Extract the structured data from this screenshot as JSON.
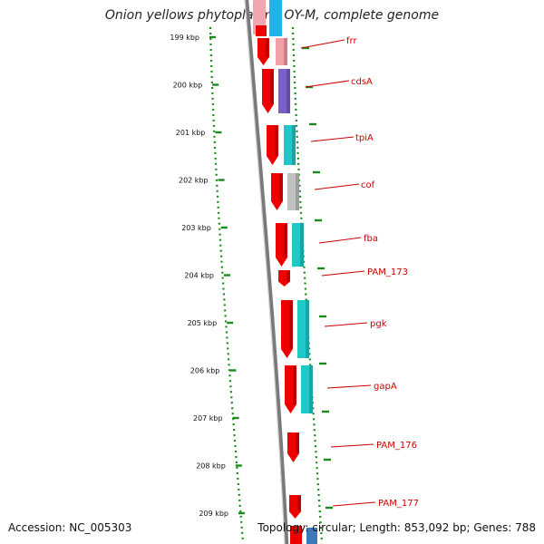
{
  "title": "Onion yellows phytoplasma OY-M, complete genome",
  "footer": {
    "accession": "Accession: NC_005303",
    "stats": "Topology: circular; Length: 853,092 bp; Genes: 788"
  },
  "ruler": {
    "ticks": [
      "199 kbp",
      "200 kbp",
      "201 kbp",
      "202 kbp",
      "203 kbp",
      "204 kbp",
      "205 kbp",
      "206 kbp",
      "207 kbp",
      "208 kbp",
      "209 kbp"
    ]
  },
  "genes": [
    {
      "name": "frr",
      "label_color": "#cc0000",
      "cog_color": "#f0a0a8"
    },
    {
      "name": "cdsA",
      "label_color": "#cc0000",
      "cog_color": "#7a60c8"
    },
    {
      "name": "tpiA",
      "label_color": "#cc0000",
      "cog_color": "#20c8c8"
    },
    {
      "name": "cof",
      "label_color": "#cc0000",
      "cog_color": "#c0c0c0"
    },
    {
      "name": "fba",
      "label_color": "#cc0000",
      "cog_color": "#20c8c8"
    },
    {
      "name": "PAM_173",
      "label_color": "#cc0000",
      "cog_color": null
    },
    {
      "name": "pgk",
      "label_color": "#cc0000",
      "cog_color": "#20c8c8"
    },
    {
      "name": "gapA",
      "label_color": "#cc0000",
      "cog_color": "#20c8c8"
    },
    {
      "name": "PAM_176",
      "label_color": "#cc0000",
      "cog_color": null
    },
    {
      "name": "PAM_177",
      "label_color": "#cc0000",
      "cog_color": null
    }
  ],
  "colors": {
    "cds_forward": "#ee0000",
    "backbone": "#888888",
    "tick_green": "#228b22",
    "label_red": "#cc0000"
  }
}
